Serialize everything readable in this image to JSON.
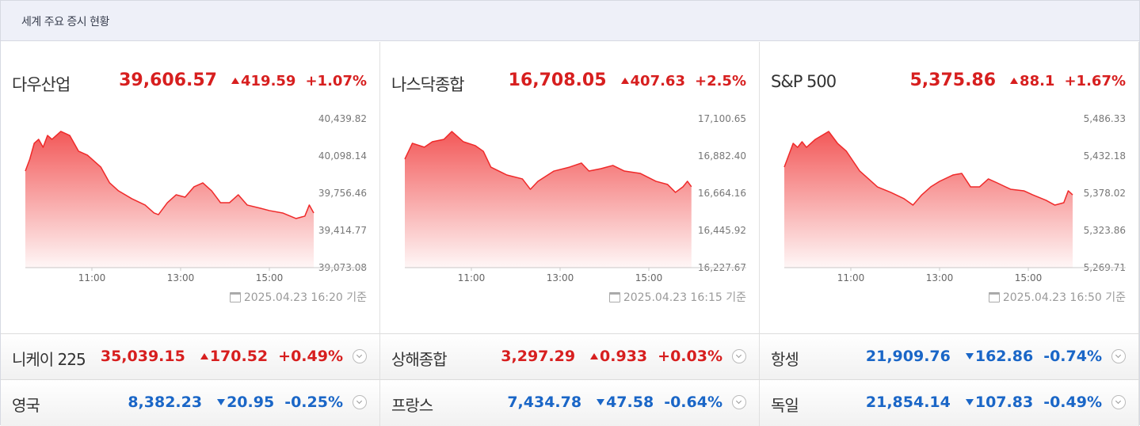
{
  "header": {
    "title": "세계 주요 증시 현황"
  },
  "panels": [
    {
      "name": "다우산업",
      "price": "39,606.57",
      "change": "419.59",
      "change_pct": "+1.07%",
      "direction": "up",
      "timestamp": "2025.04.23 16:20 기준"
    },
    {
      "name": "나스닥종합",
      "price": "16,708.05",
      "change": "407.63",
      "change_pct": "+2.5%",
      "direction": "up",
      "timestamp": "2025.04.23 16:15 기준"
    },
    {
      "name": "S&P 500",
      "price": "5,375.86",
      "change": "88.1",
      "change_pct": "+1.67%",
      "direction": "up",
      "timestamp": "2025.04.23 16:50 기준"
    }
  ],
  "chart_data": [
    {
      "type": "area",
      "color": "#ef2a2a",
      "grid": false,
      "x": [
        9.5,
        9.6,
        9.7,
        9.8,
        9.9,
        10.0,
        10.1,
        10.3,
        10.5,
        10.7,
        10.9,
        11.2,
        11.4,
        11.6,
        11.9,
        12.2,
        12.4,
        12.5,
        12.7,
        12.9,
        13.1,
        13.3,
        13.5,
        13.7,
        13.9,
        14.1,
        14.3,
        14.5,
        14.8,
        15.0,
        15.3,
        15.6,
        15.8,
        15.9,
        16.0
      ],
      "values": [
        39960,
        40069,
        40215,
        40251,
        40178,
        40287,
        40251,
        40324,
        40287,
        40142,
        40106,
        39997,
        39851,
        39778,
        39706,
        39648,
        39575,
        39560,
        39669,
        39742,
        39720,
        39815,
        39851,
        39778,
        39669,
        39669,
        39742,
        39648,
        39618,
        39597,
        39575,
        39524,
        39546,
        39648,
        39575
      ],
      "xlim": [
        9.5,
        16
      ],
      "xticks": [
        {
          "value": 11,
          "label": "11:00"
        },
        {
          "value": 13,
          "label": "13:00"
        },
        {
          "value": 15,
          "label": "15:00"
        }
      ],
      "ylim": [
        39073.08,
        40439.82
      ],
      "yticks": [
        {
          "value": 39073.08,
          "label": "39,073.08"
        },
        {
          "value": 39414.77,
          "label": "39,414.77"
        },
        {
          "value": 39756.46,
          "label": "39,756.46"
        },
        {
          "value": 40098.14,
          "label": "40,098.14"
        },
        {
          "value": 40439.82,
          "label": "40,439.82"
        }
      ]
    },
    {
      "type": "area",
      "color": "#ef2a2a",
      "grid": false,
      "x": [
        9.5,
        9.67,
        9.94,
        10.12,
        10.38,
        10.56,
        10.82,
        11.09,
        11.27,
        11.44,
        11.8,
        12.15,
        12.33,
        12.5,
        12.86,
        13.21,
        13.48,
        13.65,
        13.92,
        14.19,
        14.45,
        14.81,
        15.16,
        15.42,
        15.6,
        15.77,
        15.87,
        15.96
      ],
      "values": [
        16864,
        16957,
        16934,
        16966,
        16980,
        17026,
        16966,
        16943,
        16910,
        16817,
        16771,
        16748,
        16687,
        16734,
        16794,
        16817,
        16841,
        16794,
        16808,
        16827,
        16794,
        16780,
        16734,
        16716,
        16669,
        16702,
        16734,
        16702
      ],
      "xlim": [
        9.5,
        16
      ],
      "xticks": [
        {
          "value": 11,
          "label": "11:00"
        },
        {
          "value": 13,
          "label": "13:00"
        },
        {
          "value": 15,
          "label": "15:00"
        }
      ],
      "ylim": [
        16227.67,
        17100.65
      ],
      "yticks": [
        {
          "value": 16227.67,
          "label": "16,227.67"
        },
        {
          "value": 16445.92,
          "label": "16,445.92"
        },
        {
          "value": 16664.16,
          "label": "16,664.16"
        },
        {
          "value": 16882.4,
          "label": "16,882.40"
        },
        {
          "value": 17100.65,
          "label": "17,100.65"
        }
      ]
    },
    {
      "type": "area",
      "color": "#ef2a2a",
      "grid": false,
      "x": [
        9.5,
        9.6,
        9.7,
        9.8,
        9.9,
        10.0,
        10.2,
        10.5,
        10.7,
        10.9,
        11.2,
        11.4,
        11.6,
        11.9,
        12.2,
        12.4,
        12.6,
        12.8,
        13.0,
        13.3,
        13.5,
        13.7,
        13.9,
        14.1,
        14.3,
        14.6,
        14.9,
        15.1,
        15.4,
        15.6,
        15.8,
        15.9,
        16.0
      ],
      "values": [
        5416.0,
        5433.3,
        5450.6,
        5444.8,
        5452.9,
        5444.8,
        5456.4,
        5467.9,
        5450.6,
        5439.1,
        5410.3,
        5398.8,
        5387.2,
        5379.2,
        5370.0,
        5360.7,
        5375.7,
        5387.2,
        5395.3,
        5404.5,
        5406.8,
        5387.2,
        5387.2,
        5398.8,
        5393.0,
        5383.8,
        5381.5,
        5375.7,
        5367.7,
        5360.7,
        5364.2,
        5381.5,
        5375.7
      ],
      "xlim": [
        9.5,
        16
      ],
      "xticks": [
        {
          "value": 11,
          "label": "11:00"
        },
        {
          "value": 13,
          "label": "13:00"
        },
        {
          "value": 15,
          "label": "15:00"
        }
      ],
      "ylim": [
        5269.71,
        5486.33
      ],
      "yticks": [
        {
          "value": 5269.71,
          "label": "5,269.71"
        },
        {
          "value": 5323.86,
          "label": "5,323.86"
        },
        {
          "value": 5378.02,
          "label": "5,378.02"
        },
        {
          "value": 5432.18,
          "label": "5,432.18"
        },
        {
          "value": 5486.33,
          "label": "5,486.33"
        }
      ]
    }
  ],
  "rows": [
    [
      {
        "name": "니케이 225",
        "price": "35,039.15",
        "change": "170.52",
        "change_pct": "+0.49%",
        "direction": "up"
      },
      {
        "name": "상해종합",
        "price": "3,297.29",
        "change": "0.933",
        "change_pct": "+0.03%",
        "direction": "up"
      },
      {
        "name": "항셍",
        "price": "21,909.76",
        "change": "162.86",
        "change_pct": "-0.74%",
        "direction": "down"
      }
    ],
    [
      {
        "name": "영국",
        "price": "8,382.23",
        "change": "20.95",
        "change_pct": "-0.25%",
        "direction": "down"
      },
      {
        "name": "프랑스",
        "price": "7,434.78",
        "change": "47.58",
        "change_pct": "-0.64%",
        "direction": "down"
      },
      {
        "name": "독일",
        "price": "21,854.14",
        "change": "107.83",
        "change_pct": "-0.49%",
        "direction": "down"
      }
    ]
  ]
}
